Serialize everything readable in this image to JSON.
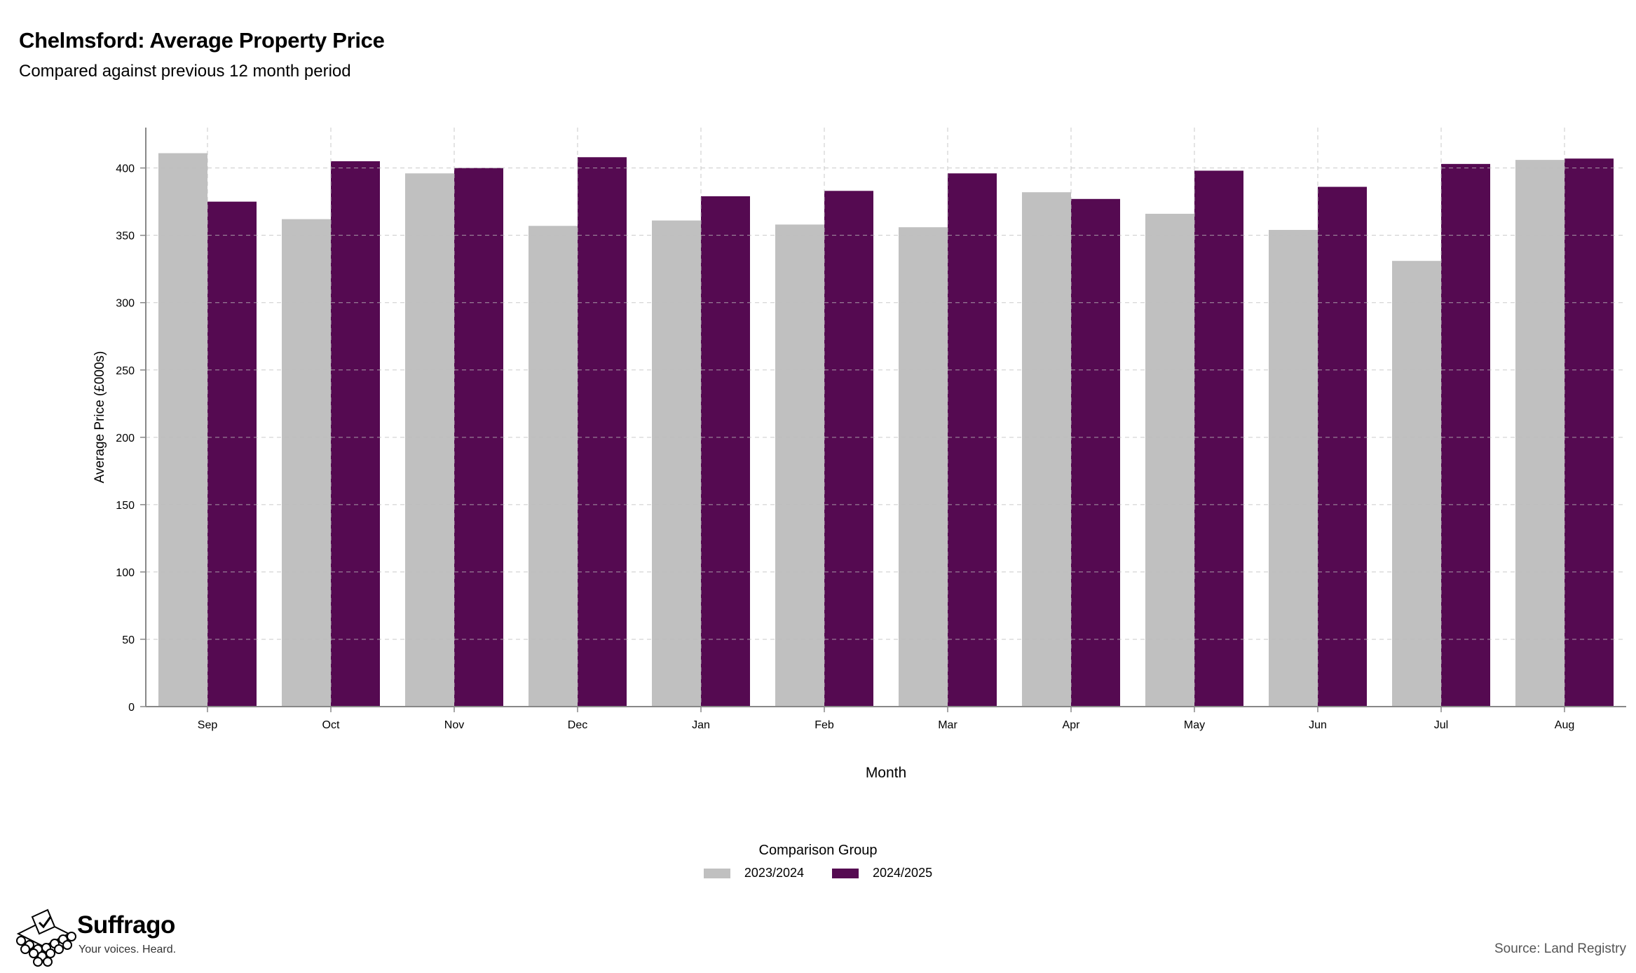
{
  "header": {
    "title": "Chelmsford: Average Property Price",
    "subtitle": "Compared against previous 12 month period"
  },
  "chart_data": {
    "type": "bar",
    "title": "Chelmsford: Average Property Price",
    "subtitle": "Compared against previous 12 month period",
    "xlabel": "Month",
    "ylabel": "Average Price (£000s)",
    "categories": [
      "Sep",
      "Oct",
      "Nov",
      "Dec",
      "Jan",
      "Feb",
      "Mar",
      "Apr",
      "May",
      "Jun",
      "Jul",
      "Aug"
    ],
    "series": [
      {
        "name": "2023/2024",
        "color": "#c0c0c0",
        "values": [
          411,
          362,
          396,
          357,
          361,
          358,
          356,
          382,
          366,
          354,
          331,
          406
        ]
      },
      {
        "name": "2024/2025",
        "color": "#550a51",
        "values": [
          375,
          405,
          400,
          408,
          379,
          383,
          396,
          377,
          398,
          386,
          403,
          407
        ]
      }
    ],
    "ylim": [
      0,
      430
    ],
    "yticks": [
      0,
      50,
      100,
      150,
      200,
      250,
      300,
      350,
      400
    ],
    "grid": true,
    "legend_position": "bottom-center"
  },
  "legend": {
    "title": "Comparison Group",
    "items": [
      {
        "label": "2023/2024",
        "color": "#c0c0c0"
      },
      {
        "label": "2024/2025",
        "color": "#550a51"
      }
    ]
  },
  "footer": {
    "brand_name": "Suffrago",
    "brand_tagline": "Your voices. Heard.",
    "source": "Source: Land Registry"
  }
}
